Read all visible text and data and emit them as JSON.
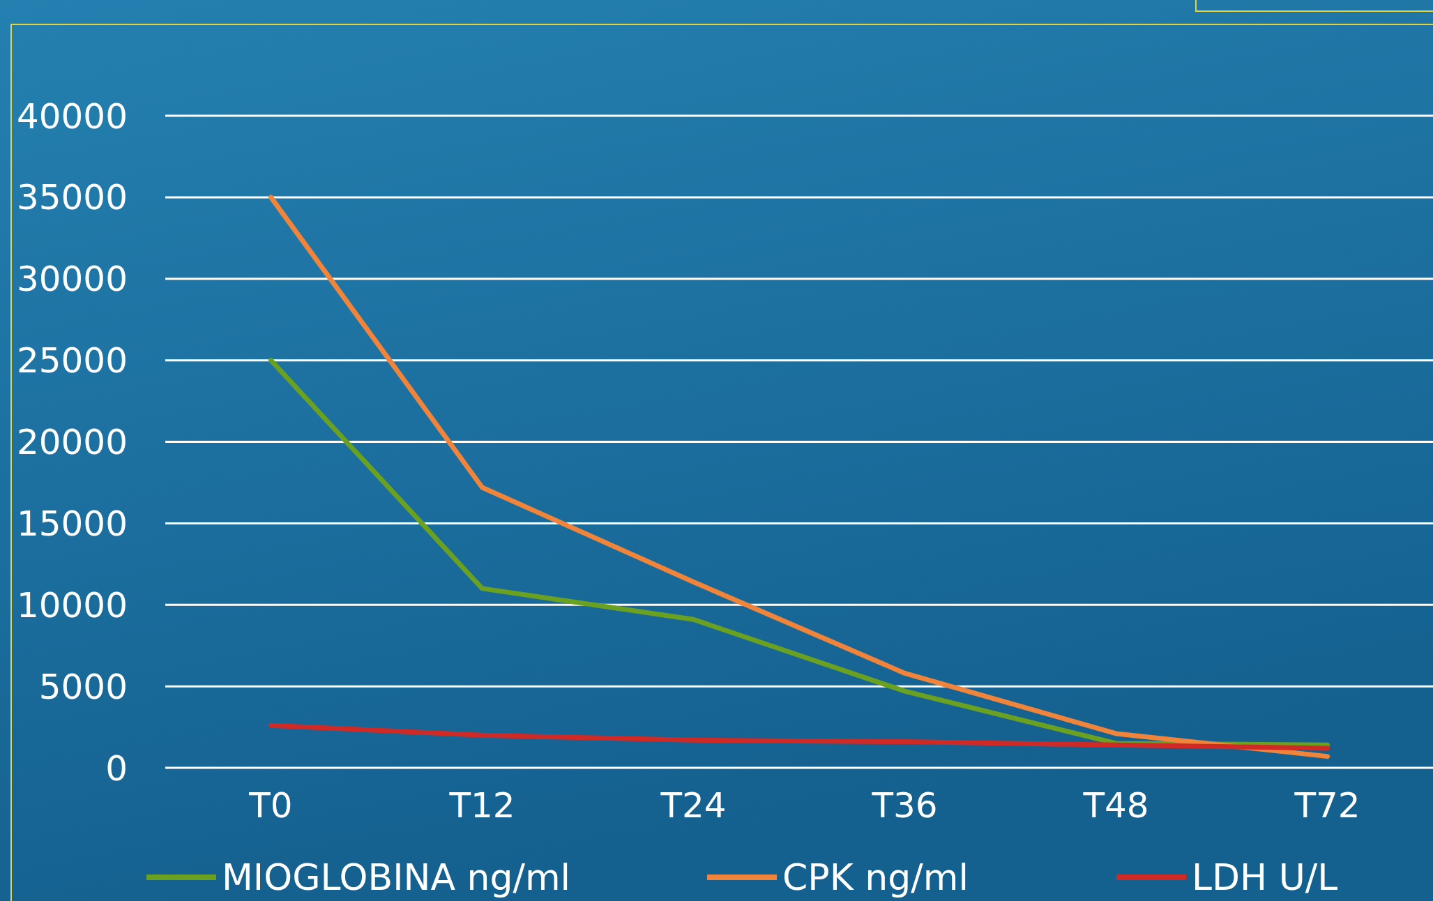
{
  "chart_data": {
    "type": "line",
    "categories": [
      "T0",
      "T12",
      "T24",
      "T36",
      "T48",
      "T72"
    ],
    "series": [
      {
        "name": "MIOGLOBINA ng/ml",
        "color": "#6aa121",
        "values": [
          25000,
          11000,
          9100,
          4700,
          1500,
          1400
        ]
      },
      {
        "name": "CPK ng/ml",
        "color": "#f0843a",
        "values": [
          35000,
          17200,
          11400,
          5800,
          2100,
          700
        ]
      },
      {
        "name": "LDH U/L",
        "color": "#d02a26",
        "values": [
          2600,
          2000,
          1700,
          1600,
          1400,
          1200
        ]
      }
    ],
    "ylim": [
      0,
      40000
    ],
    "yticks": [
      0,
      5000,
      10000,
      15000,
      20000,
      25000,
      30000,
      35000,
      40000
    ],
    "grid": "y",
    "legend": "bottom",
    "marker": "none",
    "line_style": "solid"
  }
}
